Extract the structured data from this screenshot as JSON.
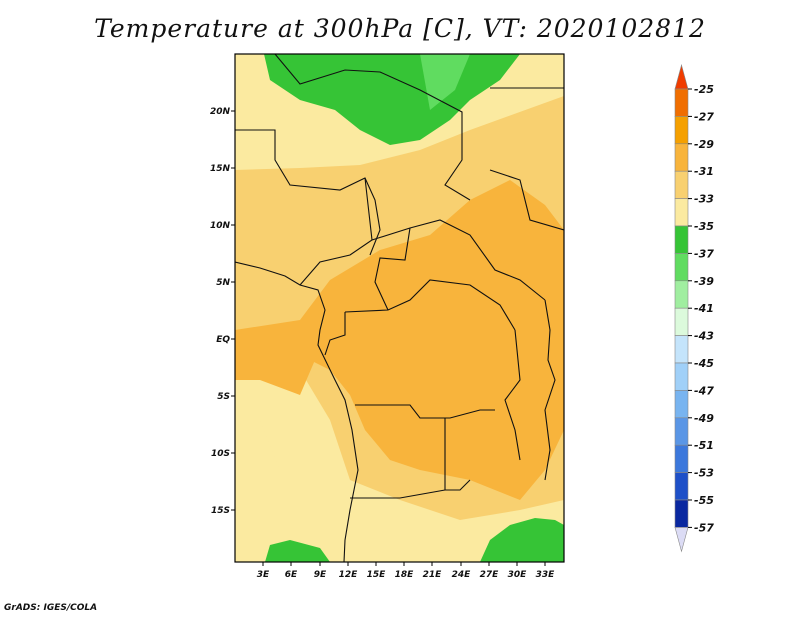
{
  "title": "Temperature at 300hPa [C], VT: 2020102812",
  "credit": "GrADS: IGES/COLA",
  "map": {
    "lat_labels": [
      "20N",
      "15N",
      "10N",
      "5N",
      "EQ",
      "5S",
      "10S",
      "15S"
    ],
    "lon_labels": [
      "3E",
      "6E",
      "9E",
      "12E",
      "15E",
      "18E",
      "21E",
      "24E",
      "27E",
      "30E",
      "33E"
    ]
  },
  "colorbar": {
    "levels": [
      "-25",
      "-27",
      "-29",
      "-31",
      "-33",
      "-35",
      "-37",
      "-39",
      "-41",
      "-43",
      "-45",
      "-47",
      "-49",
      "-51",
      "-53",
      "-55",
      "-57"
    ],
    "colors": [
      "#f03c00",
      "#f06e00",
      "#f5a000",
      "#f8b43c",
      "#f8d070",
      "#fbeaa0",
      "#36c436",
      "#60dc60",
      "#a0eea0",
      "#dcfadc",
      "#c4e4fb",
      "#a0d0f8",
      "#78b4f0",
      "#5a96e6",
      "#3c78dc",
      "#1e50c8",
      "#0a28a0",
      "#0a0a6e",
      "#dcdcf5"
    ]
  }
}
